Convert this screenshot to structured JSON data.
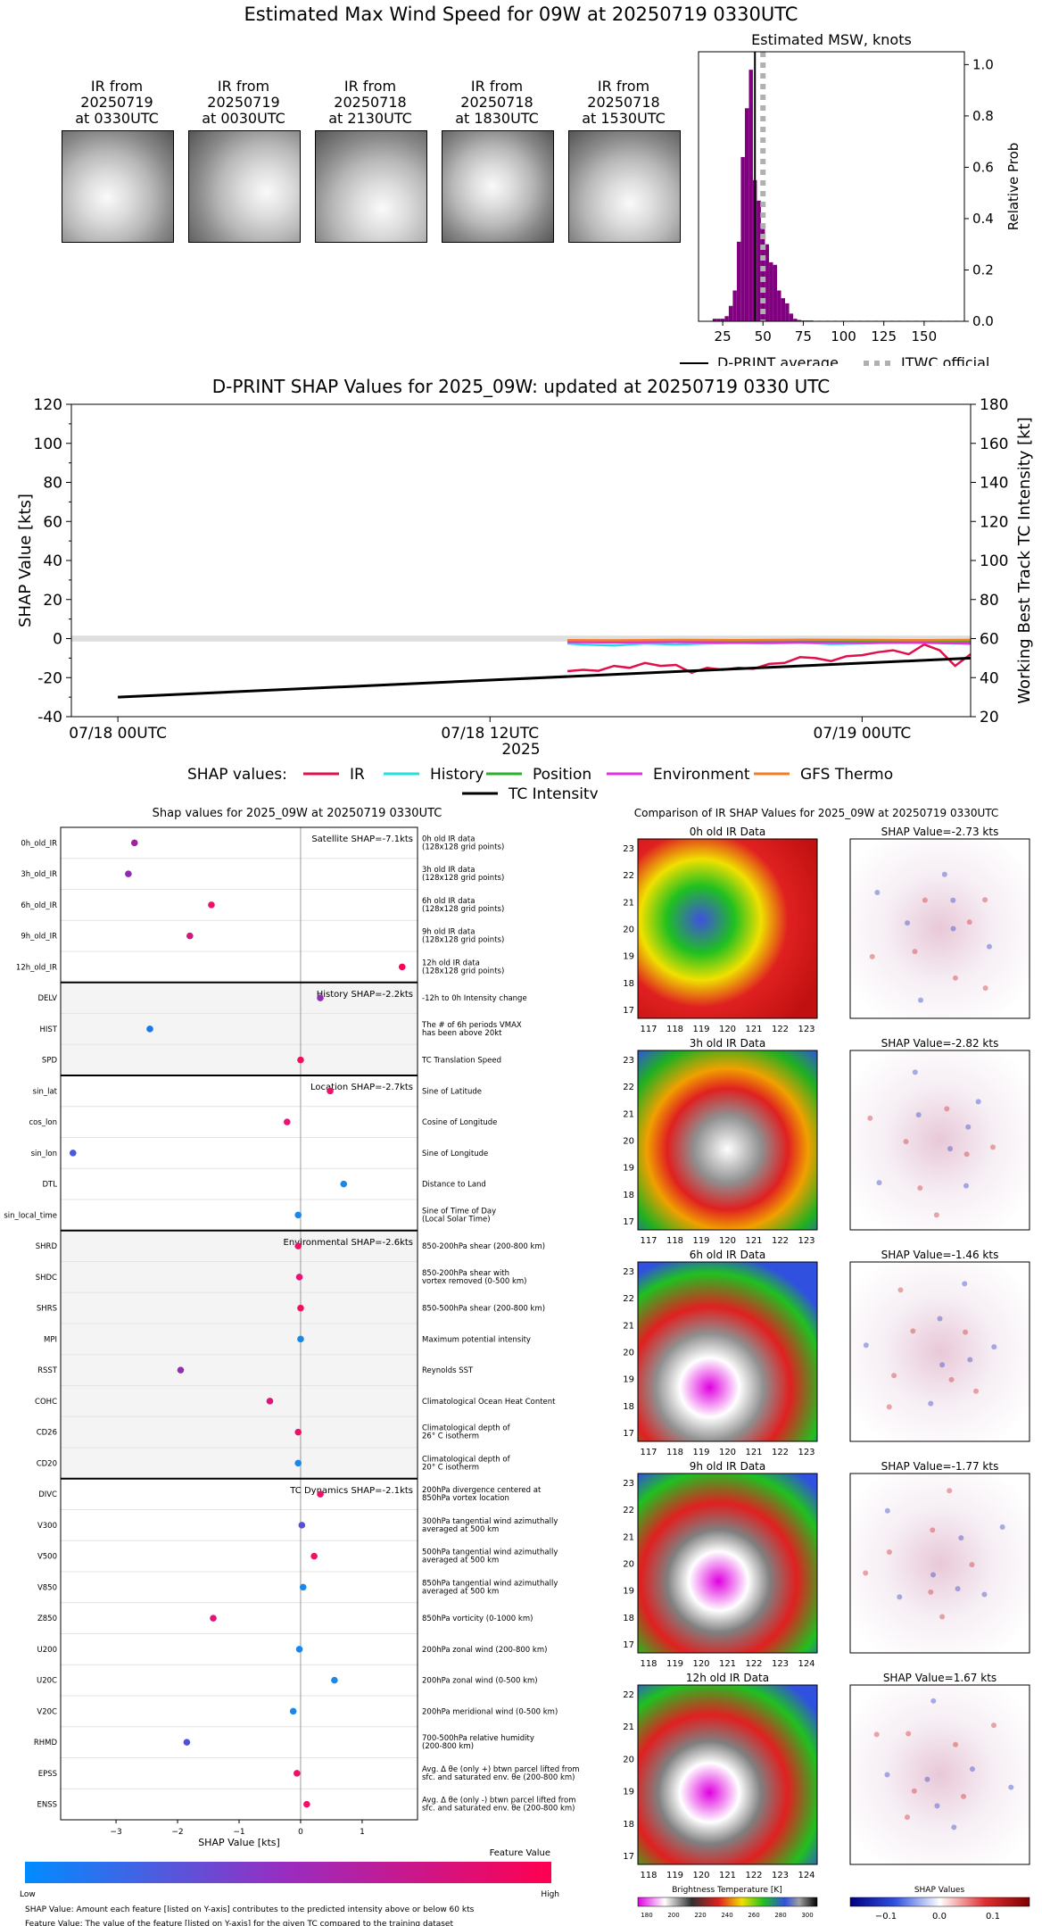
{
  "page": {
    "title": "Estimated Max Wind Speed for 09W at 20250719 0330UTC"
  },
  "ir_panels": [
    {
      "l1": "IR from",
      "l2": "20250719",
      "l3": "at 0330UTC"
    },
    {
      "l1": "IR from",
      "l2": "20250719",
      "l3": "at 0030UTC"
    },
    {
      "l1": "IR from",
      "l2": "20250718",
      "l3": "at 2130UTC"
    },
    {
      "l1": "IR from",
      "l2": "20250718",
      "l3": "at 1830UTC"
    },
    {
      "l1": "IR from",
      "l2": "20250718",
      "l3": "at 1530UTC"
    }
  ],
  "chart_data": [
    {
      "type": "bar",
      "title": "Estimated MSW, knots",
      "ylabel": "Relative Prob",
      "xlim": [
        10,
        175
      ],
      "ylim": [
        0,
        1.05
      ],
      "xticks": [
        "25",
        "50",
        "75",
        "100",
        "125",
        "150"
      ],
      "yticks": [
        "0.0",
        "0.2",
        "0.4",
        "0.6",
        "0.8",
        "1.0"
      ],
      "bar_color": "#800080",
      "x": [
        20,
        22.5,
        25,
        27.5,
        30,
        32.5,
        35,
        37.5,
        40,
        42.5,
        45,
        47.5,
        50,
        52.5,
        55,
        57.5,
        60,
        62.5,
        65,
        67.5,
        70,
        72.5,
        75,
        77.5,
        80,
        85,
        90,
        95,
        100,
        105,
        110,
        115,
        120,
        125,
        130,
        135,
        140,
        145,
        150,
        155,
        160,
        165,
        170
      ],
      "values": [
        0.01,
        0.01,
        0.01,
        0.02,
        0.06,
        0.12,
        0.31,
        0.64,
        0.83,
        0.98,
        0.55,
        0.47,
        0.36,
        0.3,
        0.23,
        0.22,
        0.12,
        0.09,
        0.07,
        0.03,
        0.01,
        0.005,
        0.003,
        0.003,
        0.003,
        0.002,
        0.002,
        0.002,
        0.002,
        0.002,
        0.002,
        0.002,
        0.002,
        0.002,
        0.002,
        0.002,
        0.002,
        0.002,
        0.002,
        0.002,
        0.002,
        0.002,
        0.002
      ],
      "dprint_average": 45,
      "jtwc_official": 50,
      "legend": [
        {
          "label": "D-PRINT average",
          "color": "#000000",
          "style": "solid"
        },
        {
          "label": "JTWC official",
          "color": "#b0b0b0",
          "style": "dotted"
        }
      ]
    },
    {
      "type": "line",
      "title": "D-PRINT SHAP Values for 2025_09W: updated at 20250719 0330 UTC",
      "xlabel": "2025",
      "ylabel": "SHAP Value [kts]",
      "ylabel_right": "Working Best Track TC Intensity [kt]",
      "ylim": [
        -40,
        120
      ],
      "ylim_right": [
        20,
        180
      ],
      "xticks": [
        "07/18 00UTC",
        "07/18 12UTC",
        "07/19 00UTC"
      ],
      "xlim_hours": [
        -1.5,
        27.5
      ],
      "legend_title": "SHAP values:",
      "series": [
        {
          "name": "IR",
          "color": "#e0104a",
          "x": [
            14.5,
            15,
            15.5,
            16,
            16.5,
            17,
            17.5,
            18,
            18.5,
            19,
            19.5,
            20,
            20.5,
            21,
            21.5,
            22,
            22.5,
            23,
            23.5,
            24,
            24.5,
            25,
            25.5,
            26,
            26.5,
            27,
            27.5
          ],
          "values": [
            -16.7,
            -16,
            -16.5,
            -14,
            -15,
            -12.5,
            -14,
            -13.5,
            -17.5,
            -15,
            -16,
            -15,
            -15.5,
            -13,
            -12.5,
            -9.5,
            -10,
            -11.5,
            -9,
            -8.5,
            -7,
            -6,
            -8,
            -3,
            -6,
            -14,
            -8
          ]
        },
        {
          "name": "History",
          "color": "#22e0e0",
          "x": [
            14.5,
            15,
            16,
            17,
            18,
            19,
            20,
            21,
            22,
            23,
            24,
            25,
            26,
            27,
            27.5
          ],
          "values": [
            -2.5,
            -3,
            -3.5,
            -2.5,
            -3,
            -2.5,
            -2.2,
            -2.5,
            -2,
            -2.8,
            -2.5,
            -2,
            -2.2,
            -2.5,
            -2.2
          ]
        },
        {
          "name": "Position",
          "color": "#2ab02a",
          "x": [
            14.5,
            16,
            18,
            20,
            22,
            24,
            26,
            27.5
          ],
          "values": [
            -1.5,
            -1.6,
            -1.5,
            -1.7,
            -1.4,
            -1.6,
            -1.5,
            -1.6
          ]
        },
        {
          "name": "Environment",
          "color": "#e030e0",
          "x": [
            14.5,
            16,
            18,
            20,
            22,
            24,
            26,
            27.5
          ],
          "values": [
            -1.8,
            -2,
            -1.8,
            -2.1,
            -1.9,
            -2.2,
            -2.0,
            -2.6
          ]
        },
        {
          "name": "GFS Thermo",
          "color": "#f57c20",
          "x": [
            14.5,
            16,
            18,
            20,
            22,
            24,
            26,
            27.5
          ],
          "values": [
            -0.8,
            -0.9,
            -0.7,
            -0.8,
            -0.6,
            -0.7,
            -0.8,
            -0.7
          ]
        },
        {
          "name": "TC Intensity",
          "color": "#000000",
          "axis": "right",
          "x": [
            0,
            27.5
          ],
          "values": [
            30,
            50
          ]
        }
      ]
    },
    {
      "type": "scatter",
      "title": "Shap values for 2025_09W at 20250719 0330UTC",
      "xlabel": "SHAP Value [kts]",
      "xlim": [
        -3.9,
        1.9
      ],
      "xticks": [
        "-3",
        "-2",
        "-1",
        "0",
        "1"
      ],
      "groups": [
        {
          "label": "Satellite SHAP=-7.1kts",
          "shaded": false,
          "rows": [
            {
              "feature": "0h_old_IR",
              "desc": [
                "0h old IR data",
                "(128x128 grid points)"
              ],
              "x": -2.7,
              "color": "#a020a8"
            },
            {
              "feature": "3h_old_IR",
              "desc": [
                "3h old IR data",
                "(128x128 grid points)"
              ],
              "x": -2.8,
              "color": "#9028b0"
            },
            {
              "feature": "6h_old_IR",
              "desc": [
                "6h old IR data",
                "(128x128 grid points)"
              ],
              "x": -1.45,
              "color": "#f0106a"
            },
            {
              "feature": "9h_old_IR",
              "desc": [
                "9h old IR data",
                "(128x128 grid points)"
              ],
              "x": -1.8,
              "color": "#d01880"
            },
            {
              "feature": "12h_old_IR",
              "desc": [
                "12h old IR data",
                "(128x128 grid points)"
              ],
              "x": 1.65,
              "color": "#ff0055"
            }
          ]
        },
        {
          "label": "History SHAP=-2.2kts",
          "shaded": true,
          "rows": [
            {
              "feature": "DELV",
              "desc": [
                "-12h to 0h Intensity change"
              ],
              "x": 0.32,
              "color": "#9030b8"
            },
            {
              "feature": "HIST",
              "desc": [
                "The # of 6h periods VMAX",
                "has been above 20kt"
              ],
              "x": -2.45,
              "color": "#1a78ee"
            },
            {
              "feature": "SPD",
              "desc": [
                "TC Translation Speed"
              ],
              "x": 0.0,
              "color": "#f2105e"
            }
          ]
        },
        {
          "label": "Location SHAP=-2.7kts",
          "shaded": false,
          "rows": [
            {
              "feature": "sin_lat",
              "desc": [
                "Sine of Latitude"
              ],
              "x": 0.48,
              "color": "#f0106a"
            },
            {
              "feature": "cos_lon",
              "desc": [
                "Cosine of Longitude"
              ],
              "x": -0.22,
              "color": "#e81478"
            },
            {
              "feature": "sin_lon",
              "desc": [
                "Sine of Longitude"
              ],
              "x": -3.7,
              "color": "#4a58e0"
            },
            {
              "feature": "DTL",
              "desc": [
                "Distance to Land"
              ],
              "x": 0.7,
              "color": "#1a88e8"
            },
            {
              "feature": "sin_local_time",
              "desc": [
                "Sine of Time of Day",
                "(Local Solar Time)"
              ],
              "x": -0.04,
              "color": "#1a88e8"
            }
          ]
        },
        {
          "label": "Environmental SHAP=-2.6kts",
          "shaded": true,
          "rows": [
            {
              "feature": "SHRD",
              "desc": [
                "850-200hPa shear (200-800 km)"
              ],
              "x": -0.04,
              "color": "#f0106a"
            },
            {
              "feature": "SHDC",
              "desc": [
                "850-200hPa shear with",
                "vortex removed (0-500 km)"
              ],
              "x": -0.02,
              "color": "#e8147a"
            },
            {
              "feature": "SHRS",
              "desc": [
                "850-500hPa shear (200-800 km)"
              ],
              "x": 0.0,
              "color": "#f2105e"
            },
            {
              "feature": "MPI",
              "desc": [
                "Maximum potential intensity"
              ],
              "x": 0.0,
              "color": "#1a88e8"
            },
            {
              "feature": "RSST",
              "desc": [
                "Reynolds SST"
              ],
              "x": -1.95,
              "color": "#9030b0"
            },
            {
              "feature": "COHC",
              "desc": [
                "Climatological Ocean Heat Content"
              ],
              "x": -0.5,
              "color": "#e0147a"
            },
            {
              "feature": "CD26",
              "desc": [
                "Climatological depth of",
                "26° C isotherm"
              ],
              "x": -0.04,
              "color": "#f0106a"
            },
            {
              "feature": "CD20",
              "desc": [
                "Climatological depth of",
                "20° C isotherm"
              ],
              "x": -0.04,
              "color": "#1a88e8"
            }
          ]
        },
        {
          "label": "TC Dynamics SHAP=-2.1kts",
          "shaded": false,
          "rows": [
            {
              "feature": "DIVC",
              "desc": [
                "200hPa divergence centered at",
                "850hPa vortex location"
              ],
              "x": 0.32,
              "color": "#f0106a"
            },
            {
              "feature": "V300",
              "desc": [
                "300hPa tangential wind azimuthally",
                "averaged at 500 km"
              ],
              "x": 0.02,
              "color": "#5a50d8"
            },
            {
              "feature": "V500",
              "desc": [
                "500hPa tangential wind azimuthally",
                "averaged at 500 km"
              ],
              "x": 0.22,
              "color": "#f0106a"
            },
            {
              "feature": "V850",
              "desc": [
                "850hPa tangential wind azimuthally",
                "averaged at 500 km"
              ],
              "x": 0.04,
              "color": "#1a88e8"
            },
            {
              "feature": "Z850",
              "desc": [
                "850hPa vorticity (0-1000 km)"
              ],
              "x": -1.42,
              "color": "#e0147a"
            },
            {
              "feature": "U200",
              "desc": [
                "200hPa zonal wind (200-800 km)"
              ],
              "x": -0.02,
              "color": "#1a88e8"
            },
            {
              "feature": "U20C",
              "desc": [
                "200hPa zonal wind (0-500 km)"
              ],
              "x": 0.55,
              "color": "#1a88e8"
            },
            {
              "feature": "V20C",
              "desc": [
                "200hPa meridional wind (0-500 km)"
              ],
              "x": -0.12,
              "color": "#1a88e8"
            },
            {
              "feature": "RHMD",
              "desc": [
                "700-500hPa relative humidity",
                "(200-800 km)"
              ],
              "x": -1.85,
              "color": "#5050d8"
            },
            {
              "feature": "EPSS",
              "desc": [
                "Avg. Δ θe (only +) btwn parcel lifted from",
                "sfc. and saturated env. θe (200-800 km)"
              ],
              "x": -0.06,
              "color": "#f0106a"
            },
            {
              "feature": "ENSS",
              "desc": [
                "Avg. Δ θe (only -) btwn parcel lifted from",
                "sfc. and saturated env. θe (200-800 km)"
              ],
              "x": 0.1,
              "color": "#f0106a"
            }
          ]
        }
      ],
      "colorbar": {
        "label": "Feature Value",
        "low": "Low",
        "high": "High",
        "from": "#008cff",
        "to": "#ff0050"
      },
      "notes": [
        "SHAP Value: Amount each feature [listed on Y-axis] contributes to the predicted intensity above or below 60 kts",
        "Feature Value: The value of the feature [listed on Y-axis] for the given TC compared to the training dataset"
      ]
    },
    {
      "type": "heatmap",
      "title": "Comparison of IR SHAP Values for 2025_09W at 20250719 0330UTC",
      "panels": [
        {
          "ir_title": "0h old IR Data",
          "shap_title": "SHAP Value=-2.73 kts",
          "xticks": [
            "117",
            "118",
            "119",
            "120",
            "121",
            "122",
            "123"
          ],
          "yticks": [
            "23",
            "22",
            "21",
            "20",
            "19",
            "18",
            "17"
          ]
        },
        {
          "ir_title": "3h old IR Data",
          "shap_title": "SHAP Value=-2.82 kts",
          "xticks": [
            "117",
            "118",
            "119",
            "120",
            "121",
            "122",
            "123"
          ],
          "yticks": [
            "23",
            "22",
            "21",
            "20",
            "19",
            "18",
            "17"
          ]
        },
        {
          "ir_title": "6h old IR Data",
          "shap_title": "SHAP Value=-1.46 kts",
          "xticks": [
            "117",
            "118",
            "119",
            "120",
            "121",
            "122",
            "123"
          ],
          "yticks": [
            "23",
            "22",
            "21",
            "20",
            "19",
            "18",
            "17"
          ]
        },
        {
          "ir_title": "9h old IR Data",
          "shap_title": "SHAP Value=-1.77 kts",
          "xticks": [
            "118",
            "119",
            "120",
            "121",
            "122",
            "123",
            "124"
          ],
          "yticks": [
            "23",
            "22",
            "21",
            "20",
            "19",
            "18",
            "17"
          ]
        },
        {
          "ir_title": "12h old IR Data",
          "shap_title": "SHAP Value=1.67 kts",
          "xticks": [
            "118",
            "119",
            "120",
            "121",
            "122",
            "123",
            "124"
          ],
          "yticks": [
            "22",
            "21",
            "20",
            "19",
            "18",
            "17"
          ]
        }
      ],
      "bt_colorbar": {
        "label": "Brightness Temperature [K]",
        "ticks": [
          "180",
          "200",
          "220",
          "240",
          "260",
          "280",
          "300"
        ]
      },
      "shap_colorbar": {
        "label": "SHAP Values",
        "ticks": [
          "−0.1",
          "0.0",
          "0.1"
        ]
      }
    }
  ]
}
